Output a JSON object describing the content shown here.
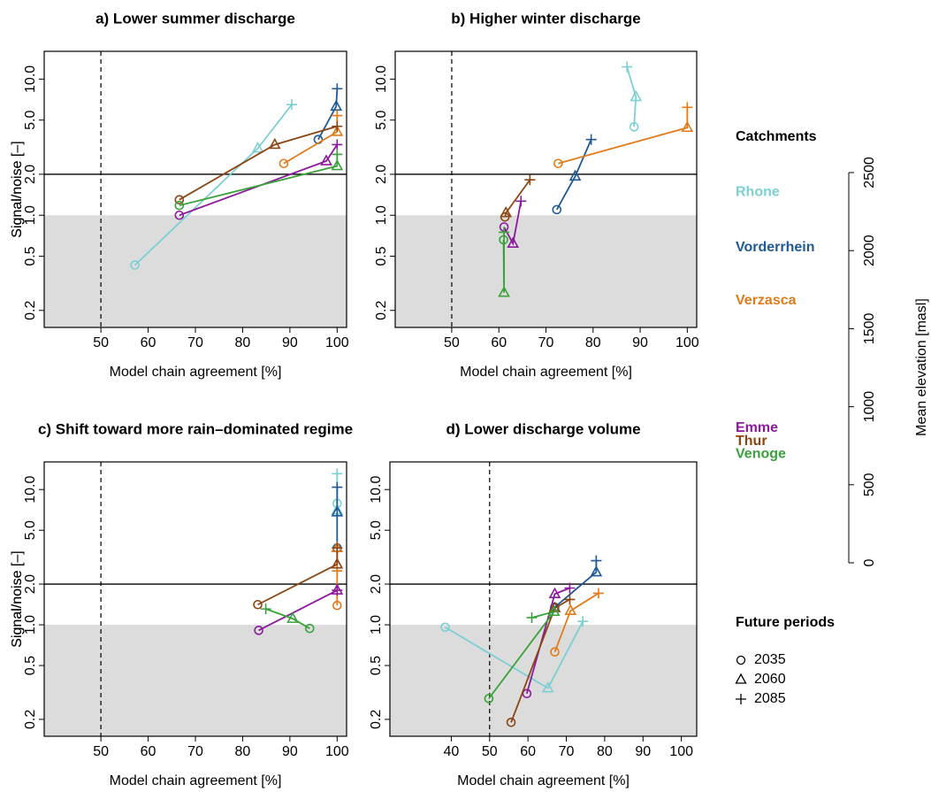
{
  "chart_data": {
    "type": "line",
    "log_y": true,
    "xlabel": "Model chain agreement [%]",
    "ylabel": "Signal/noise [–]",
    "ref_x": 50,
    "ref_y": 2,
    "shade_below": 1,
    "legend_title": "Catchments",
    "series": [
      {
        "name": "Rhone",
        "color": "#7ccfd3",
        "elevation": 2375
      },
      {
        "name": "Vorderrhein",
        "color": "#1f5a96",
        "elevation": 2018
      },
      {
        "name": "Verzasca",
        "color": "#e07b1a",
        "elevation": 1678
      },
      {
        "name": "Emme",
        "color": "#8b1a9c",
        "elevation": 862
      },
      {
        "name": "Thur",
        "color": "#8b4513",
        "elevation": 777
      },
      {
        "name": "Venoge",
        "color": "#3aa13a",
        "elevation": 697
      }
    ],
    "elevation_axis": {
      "label": "Mean elevation [masl]",
      "ylim": [
        0,
        2500
      ],
      "yticks": [
        0,
        500,
        1000,
        1500,
        2000,
        2500
      ]
    },
    "periods": {
      "title": "Future periods",
      "labels": [
        "2035",
        "2060",
        "2085"
      ]
    },
    "panels": [
      {
        "title": "a) Lower summer discharge",
        "xlim": [
          38,
          102
        ],
        "xticks": [
          50,
          60,
          70,
          80,
          90,
          100
        ],
        "ylim": [
          0.15,
          16
        ],
        "yticks": [
          0.2,
          0.5,
          {
            "value": 1,
            "label": "1.0"
          },
          {
            "value": 2,
            "label": "2.0"
          },
          {
            "value": 5,
            "label": "5.0"
          },
          {
            "value": 10,
            "label": "10.0"
          }
        ],
        "series": [
          {
            "x": [
              57.2,
              83.2,
              90.4
            ],
            "values": [
              0.43,
              3.1,
              6.5
            ]
          },
          {
            "x": [
              96,
              99.8,
              100
            ],
            "values": [
              3.6,
              6.3,
              8.5
            ]
          },
          {
            "x": [
              88.7,
              100,
              100
            ],
            "values": [
              2.4,
              4.1,
              5.4
            ]
          },
          {
            "x": [
              66.6,
              97.7,
              100
            ],
            "values": [
              1.0,
              2.5,
              3.3
            ]
          },
          {
            "x": [
              66.6,
              86.8,
              100
            ],
            "values": [
              1.3,
              3.3,
              4.5
            ]
          },
          {
            "x": [
              66.6,
              100,
              100
            ],
            "values": [
              1.18,
              2.3,
              2.8
            ]
          }
        ]
      },
      {
        "title": "b) Higher winter discharge",
        "xlim": [
          38,
          102
        ],
        "xticks": [
          50,
          60,
          70,
          80,
          90,
          100
        ],
        "ylim": [
          0.15,
          16
        ],
        "yticks": [
          0.2,
          0.5,
          {
            "value": 1,
            "label": "1.0"
          },
          {
            "value": 2,
            "label": "2.0"
          },
          {
            "value": 5,
            "label": "5.0"
          },
          {
            "value": 10,
            "label": "10.0"
          }
        ],
        "series": [
          {
            "x": [
              88.7,
              89.1,
              87.2
            ],
            "values": [
              4.46,
              7.4,
              12.3
            ]
          },
          {
            "x": [
              72.3,
              76.2,
              79.6
            ],
            "values": [
              1.1,
              1.93,
              3.6
            ]
          },
          {
            "x": [
              72.6,
              100,
              100
            ],
            "values": [
              2.4,
              4.4,
              6.2
            ]
          },
          {
            "x": [
              61.1,
              63,
              64.7
            ],
            "values": [
              0.82,
              0.62,
              1.27
            ]
          },
          {
            "x": [
              61.3,
              61.5,
              66.6
            ],
            "values": [
              0.97,
              1.04,
              1.82
            ]
          },
          {
            "x": [
              61,
              61.1,
              61.1
            ],
            "values": [
              0.66,
              0.27,
              0.75
            ]
          }
        ]
      },
      {
        "title": "c) Shift toward more rain–dominated regime",
        "xlim": [
          38,
          102
        ],
        "xticks": [
          50,
          60,
          70,
          80,
          90,
          100
        ],
        "ylim": [
          0.15,
          16
        ],
        "yticks": [
          0.2,
          0.5,
          {
            "value": 1,
            "label": "1.0"
          },
          {
            "value": 2,
            "label": "2.0"
          },
          {
            "value": 5,
            "label": "5.0"
          },
          {
            "value": 10,
            "label": "10.0"
          }
        ],
        "series": [
          {
            "x": [
              100,
              100,
              100
            ],
            "values": [
              7.9,
              7.0,
              13.1
            ]
          },
          {
            "x": [
              100,
              100,
              100
            ],
            "values": [
              3.7,
              6.8,
              10.4
            ]
          },
          {
            "x": [
              100,
              100,
              100
            ],
            "values": [
              1.39,
              3.7,
              2.5
            ]
          },
          {
            "x": [
              83.4,
              100,
              100
            ],
            "values": [
              0.91,
              1.8,
              1.8
            ]
          },
          {
            "x": [
              83.2,
              100,
              100
            ],
            "values": [
              1.41,
              2.8,
              3.7
            ]
          },
          {
            "x": [
              94.2,
              90.6,
              84.9
            ],
            "values": [
              0.94,
              1.11,
              1.31
            ]
          }
        ]
      },
      {
        "title": "d) Lower discharge volume",
        "xlim": [
          24,
          104
        ],
        "xticks": [
          40,
          50,
          60,
          70,
          80,
          90,
          100
        ],
        "ylim": [
          0.15,
          16
        ],
        "yticks": [
          0.2,
          0.5,
          {
            "value": 1,
            "label": "1.0"
          },
          {
            "value": 2,
            "label": "2.0"
          },
          {
            "value": 5,
            "label": "5.0"
          },
          {
            "value": 10,
            "label": "10.0"
          }
        ],
        "series": [
          {
            "x": [
              38.4,
              65.2,
              74.3
            ],
            "values": [
              0.96,
              0.34,
              1.06
            ]
          },
          {
            "x": [
              67,
              77.8,
              77.8
            ],
            "values": [
              1.35,
              2.45,
              2.98
            ]
          },
          {
            "x": [
              67,
              71.1,
              78.4
            ],
            "values": [
              0.63,
              1.27,
              1.71
            ]
          },
          {
            "x": [
              59.7,
              67,
              70.9
            ],
            "values": [
              0.31,
              1.69,
              1.87
            ]
          },
          {
            "x": [
              55.6,
              67,
              70.9
            ],
            "values": [
              0.19,
              1.33,
              1.54
            ]
          },
          {
            "x": [
              49.8,
              66.8,
              61
            ],
            "values": [
              0.285,
              1.25,
              1.13
            ]
          }
        ]
      }
    ]
  }
}
